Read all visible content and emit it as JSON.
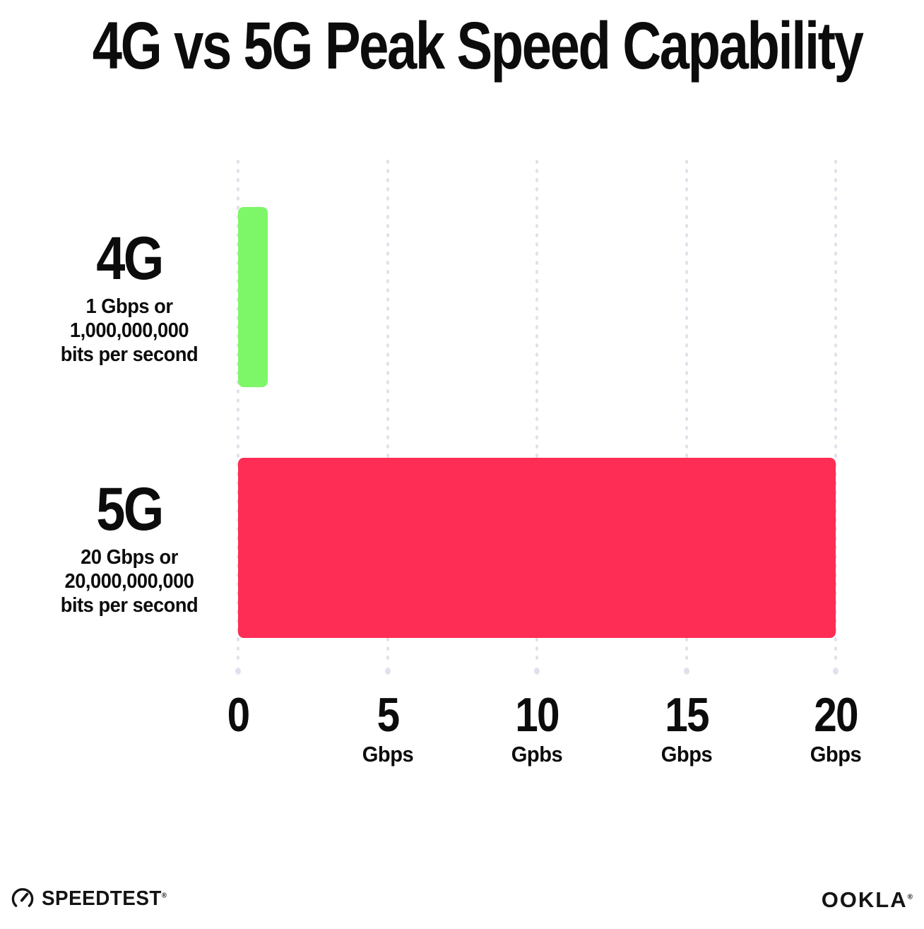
{
  "title": "4G vs 5G Peak Speed Capability",
  "colors": {
    "bar_4g": "#7DF768",
    "bar_5g": "#FD2D55",
    "grid": "#E1E1ED",
    "text": "#0C0C0C"
  },
  "chart_data": {
    "type": "bar",
    "orientation": "horizontal",
    "title": "4G vs 5G Peak Speed Capability",
    "categories": [
      "4G",
      "5G"
    ],
    "values": [
      1,
      20
    ],
    "xlim": [
      0,
      20
    ],
    "grid": "dotted-vertical",
    "legend": "none",
    "rows": [
      {
        "name": "4G",
        "value": 1,
        "color": "#7DF768",
        "label_lines": [
          "1 Gbps or",
          "1,000,000,000",
          "bits per second"
        ]
      },
      {
        "name": "5G",
        "value": 20,
        "color": "#FD2D55",
        "label_lines": [
          "20 Gbps or",
          "20,000,000,000",
          "bits per second"
        ]
      }
    ],
    "x_ticks": [
      {
        "value": 0,
        "label": "0",
        "unit": ""
      },
      {
        "value": 5,
        "label": "5",
        "unit": "Gbps"
      },
      {
        "value": 10,
        "label": "10",
        "unit": "Gpbs"
      },
      {
        "value": 15,
        "label": "15",
        "unit": "Gbps"
      },
      {
        "value": 20,
        "label": "20",
        "unit": "Gbps"
      }
    ]
  },
  "footer": {
    "speedtest_label": "SPEEDTEST",
    "speedtest_reg": "®",
    "ookla_label": "OOKLA",
    "ookla_reg": "®"
  }
}
